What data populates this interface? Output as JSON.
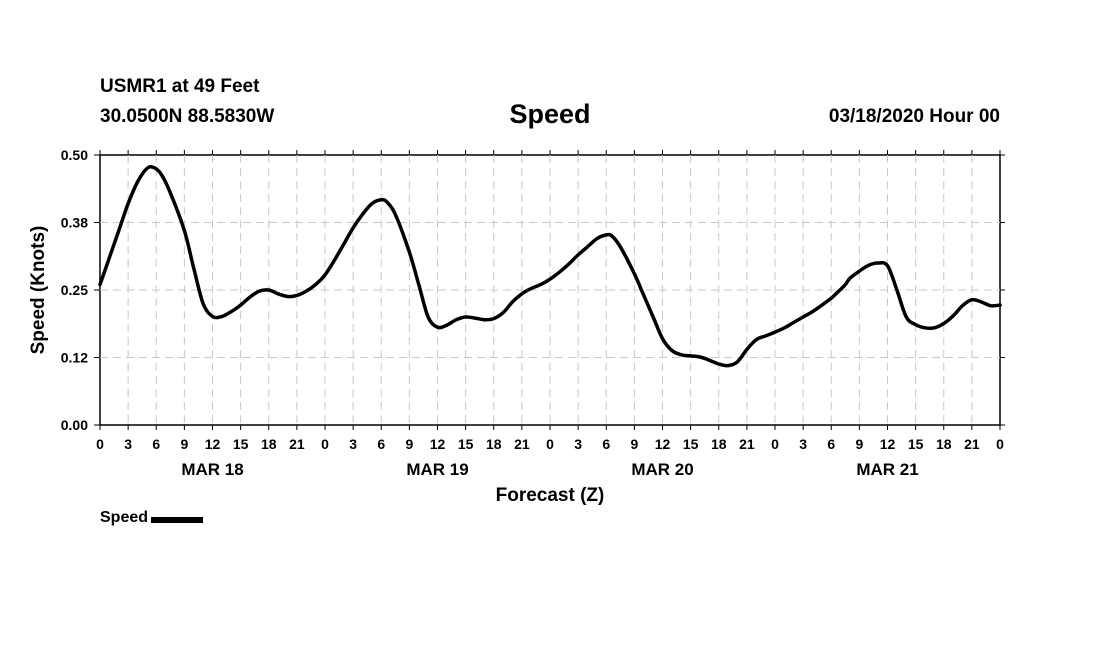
{
  "header": {
    "station": "USMR1 at 49 Feet",
    "coords": "30.0500N 88.5830W",
    "title": "Speed",
    "date": "03/18/2020 Hour 00"
  },
  "legend": {
    "label": "Speed"
  },
  "chart_data": {
    "type": "line",
    "title": "Speed",
    "xlabel": "Forecast (Z)",
    "ylabel": "Speed (Knots)",
    "xlim": [
      0,
      96
    ],
    "ylim": [
      0,
      0.5
    ],
    "yticks": [
      0.0,
      0.125,
      0.25,
      0.375,
      0.5
    ],
    "ytick_labels": [
      "0.00",
      "0.12",
      "0.25",
      "0.38",
      "0.50"
    ],
    "xtick_labels": [
      "0",
      "3",
      "6",
      "9",
      "12",
      "15",
      "18",
      "21",
      "0",
      "3",
      "6",
      "9",
      "12",
      "15",
      "18",
      "21",
      "0",
      "3",
      "6",
      "9",
      "12",
      "15",
      "18",
      "21",
      "0",
      "3",
      "6",
      "9",
      "12",
      "15",
      "18",
      "21",
      "0"
    ],
    "day_labels": [
      {
        "hour": 12,
        "label": "MAR 18"
      },
      {
        "hour": 36,
        "label": "MAR 19"
      },
      {
        "hour": 60,
        "label": "MAR 20"
      },
      {
        "hour": 84,
        "label": "MAR 21"
      }
    ],
    "grid": true,
    "series": [
      {
        "name": "Speed",
        "color": "#000000",
        "x": [
          0,
          1,
          2,
          3,
          4,
          5,
          5.7,
          6.5,
          7.5,
          9,
          10,
          11,
          12,
          13,
          14,
          15,
          16,
          17,
          18,
          19,
          20,
          21,
          22,
          23,
          24,
          25,
          26,
          27,
          28,
          29,
          30,
          30.6,
          31.5,
          33,
          34,
          35,
          36,
          37,
          38,
          39,
          40,
          41,
          42,
          43,
          44,
          45,
          46,
          47,
          48,
          49,
          50,
          51,
          52,
          53,
          54,
          54.6,
          55.5,
          57,
          58,
          59,
          60,
          61,
          62,
          63,
          64,
          65,
          66,
          67,
          68,
          69,
          70,
          71,
          72,
          73,
          74,
          75,
          76,
          77,
          78,
          78.8,
          79.5,
          80,
          81,
          82,
          83,
          84,
          85,
          86,
          87,
          88,
          89,
          90,
          91,
          92,
          93,
          94,
          95,
          96
        ],
        "values": [
          0.26,
          0.31,
          0.36,
          0.41,
          0.45,
          0.475,
          0.477,
          0.465,
          0.43,
          0.36,
          0.29,
          0.225,
          0.201,
          0.201,
          0.21,
          0.222,
          0.237,
          0.248,
          0.25,
          0.243,
          0.238,
          0.24,
          0.248,
          0.26,
          0.278,
          0.305,
          0.335,
          0.365,
          0.39,
          0.41,
          0.417,
          0.413,
          0.39,
          0.32,
          0.26,
          0.2,
          0.181,
          0.185,
          0.195,
          0.2,
          0.198,
          0.195,
          0.197,
          0.208,
          0.228,
          0.243,
          0.253,
          0.26,
          0.27,
          0.283,
          0.298,
          0.315,
          0.33,
          0.345,
          0.352,
          0.35,
          0.33,
          0.28,
          0.24,
          0.2,
          0.16,
          0.138,
          0.13,
          0.128,
          0.126,
          0.12,
          0.113,
          0.11,
          0.117,
          0.14,
          0.158,
          0.165,
          0.172,
          0.18,
          0.19,
          0.2,
          0.21,
          0.222,
          0.235,
          0.248,
          0.26,
          0.272,
          0.285,
          0.296,
          0.3,
          0.295,
          0.25,
          0.2,
          0.186,
          0.18,
          0.18,
          0.188,
          0.202,
          0.221,
          0.232,
          0.228,
          0.221,
          0.222
        ]
      }
    ]
  }
}
